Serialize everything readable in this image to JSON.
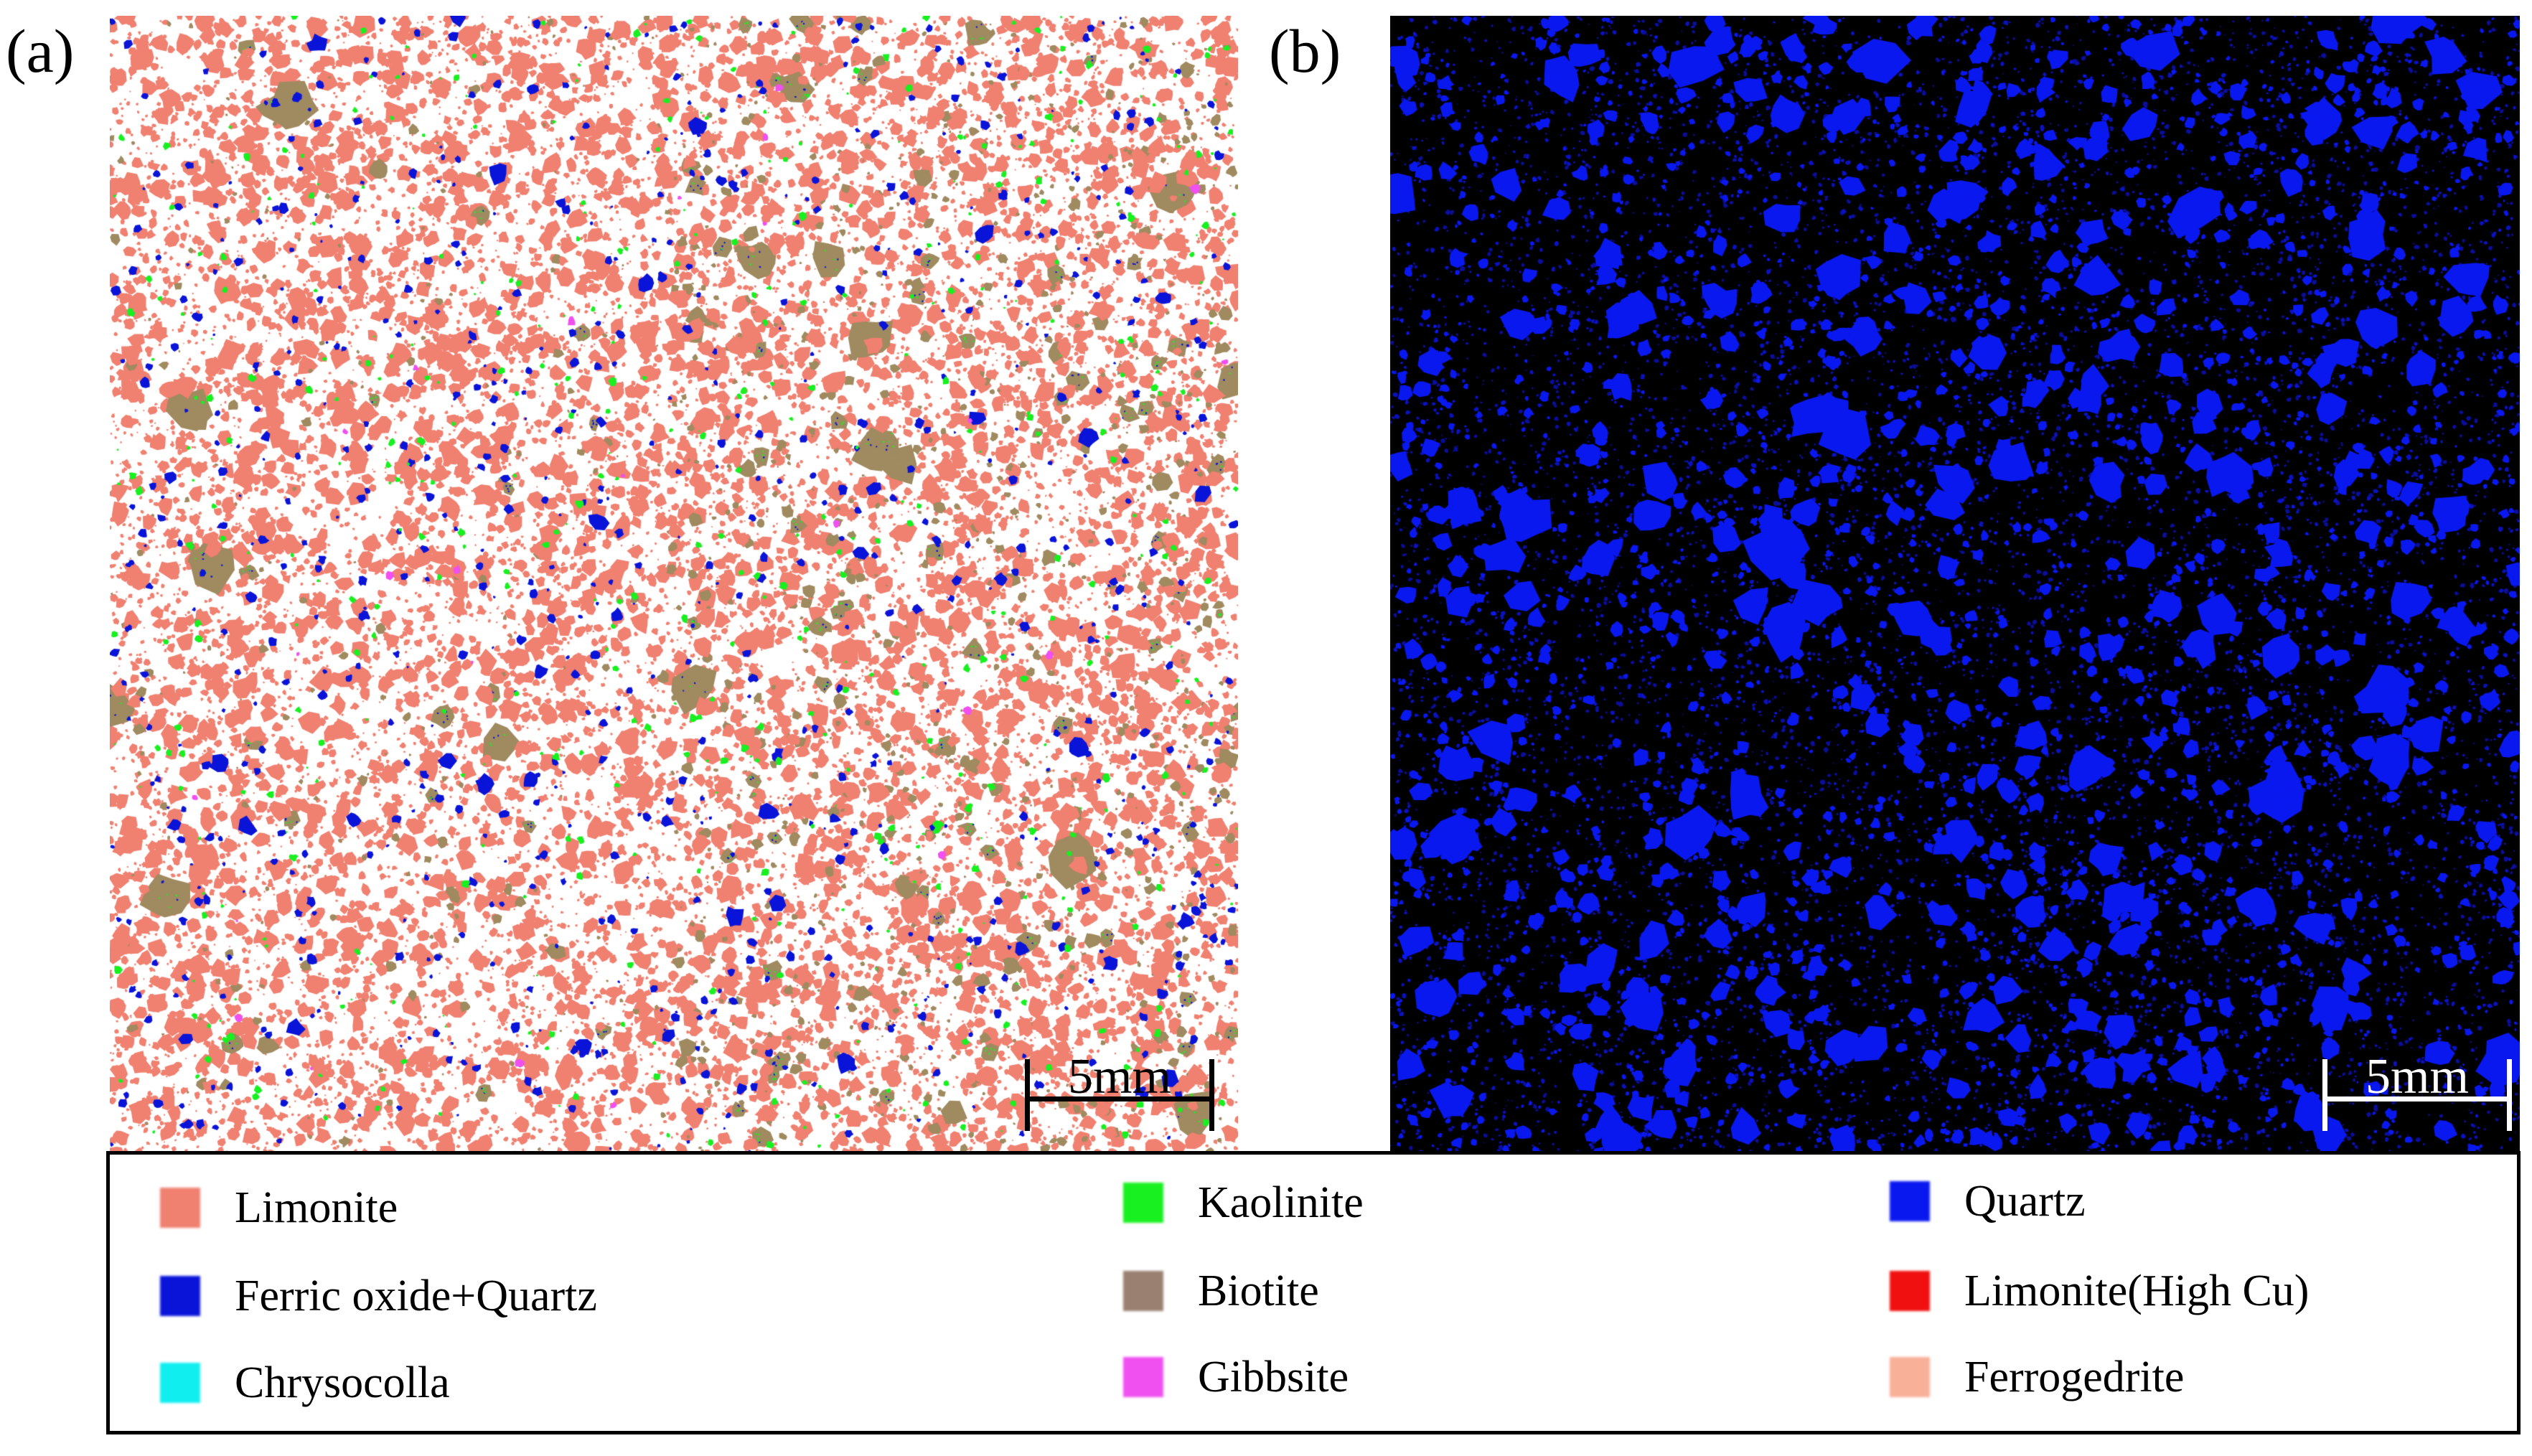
{
  "panels": [
    {
      "label": "(a)",
      "scale_text": "5mm",
      "background": "#ffffff"
    },
    {
      "label": "(b)",
      "scale_text": "5mm",
      "background": "#000000"
    }
  ],
  "legend": {
    "items": [
      {
        "label": "Limonite",
        "color": "#f08070"
      },
      {
        "label": "Ferric oxide+Quartz",
        "color": "#0a14d8"
      },
      {
        "label": "Chrysocolla",
        "color": "#10eef0"
      },
      {
        "label": "Kaolinite",
        "color": "#18f020"
      },
      {
        "label": "Biotite",
        "color": "#9a8070"
      },
      {
        "label": "Gibbsite",
        "color": "#f050f0"
      },
      {
        "label": "Quartz",
        "color": "#0a18f0"
      },
      {
        "label": "Limonite(High Cu)",
        "color": "#f01010"
      },
      {
        "label": "Ferrogedrite",
        "color": "#f8b098"
      }
    ]
  },
  "mineral_map_a": {
    "background": "#ffffff",
    "phases": [
      {
        "name": "Limonite",
        "color": "#f08070"
      },
      {
        "name": "Biotite",
        "color": "#a08a60"
      },
      {
        "name": "Ferric oxide+Quartz",
        "color": "#0a14d8"
      },
      {
        "name": "Kaolinite",
        "color": "#18f020"
      },
      {
        "name": "Gibbsite",
        "color": "#f050f0"
      }
    ]
  },
  "mineral_map_b": {
    "background": "#000000",
    "phases": [
      {
        "name": "Quartz",
        "color": "#0a18f0"
      }
    ]
  }
}
